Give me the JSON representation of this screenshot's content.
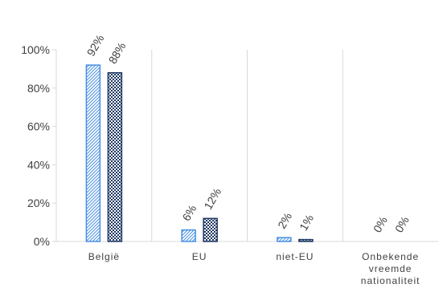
{
  "chart_data": {
    "type": "bar",
    "categories": [
      [
        "België"
      ],
      [
        "EU"
      ],
      [
        "niet-EU"
      ],
      [
        "Onbekende",
        "vreemde",
        "nationaliteit"
      ]
    ],
    "series": [
      {
        "values": [
          92,
          6,
          2,
          0
        ],
        "labels": [
          "92%",
          "6%",
          "2%",
          "0%"
        ],
        "color": "#4a90e2",
        "pattern": "light-diagonal-dots"
      },
      {
        "values": [
          88,
          12,
          1,
          0
        ],
        "labels": [
          "88%",
          "12%",
          "1%",
          "0%"
        ],
        "color": "#1f3864",
        "pattern": "dark-checker"
      }
    ],
    "ylim": [
      0,
      100
    ],
    "yticks": [
      {
        "value": 0,
        "label": "0%"
      },
      {
        "value": 20,
        "label": "20%"
      },
      {
        "value": 40,
        "label": "40%"
      },
      {
        "value": 60,
        "label": "60%"
      },
      {
        "value": 80,
        "label": "80%"
      },
      {
        "value": 100,
        "label": "100%"
      }
    ],
    "grid": "vertical-category-separators",
    "legend": "none",
    "title": "",
    "xlabel": "",
    "ylabel": ""
  }
}
